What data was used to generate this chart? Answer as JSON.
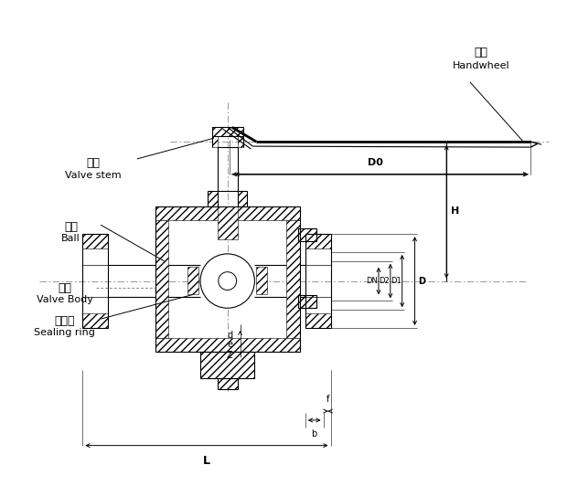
{
  "bg_color": "#ffffff",
  "labels": {
    "handwheel_cn": "手轮",
    "handwheel_en": "Handwheel",
    "valve_stem_cn": "阀杆",
    "valve_stem_en": "Valve stem",
    "ball_cn": "球体",
    "ball_en": "Ball",
    "valve_body_cn": "阀体",
    "valve_body_en": "Valve Body",
    "sealing_ring_cn": "密封圈",
    "sealing_ring_en": "Sealing ring"
  },
  "figsize": [
    6.32,
    5.32
  ],
  "dpi": 100
}
